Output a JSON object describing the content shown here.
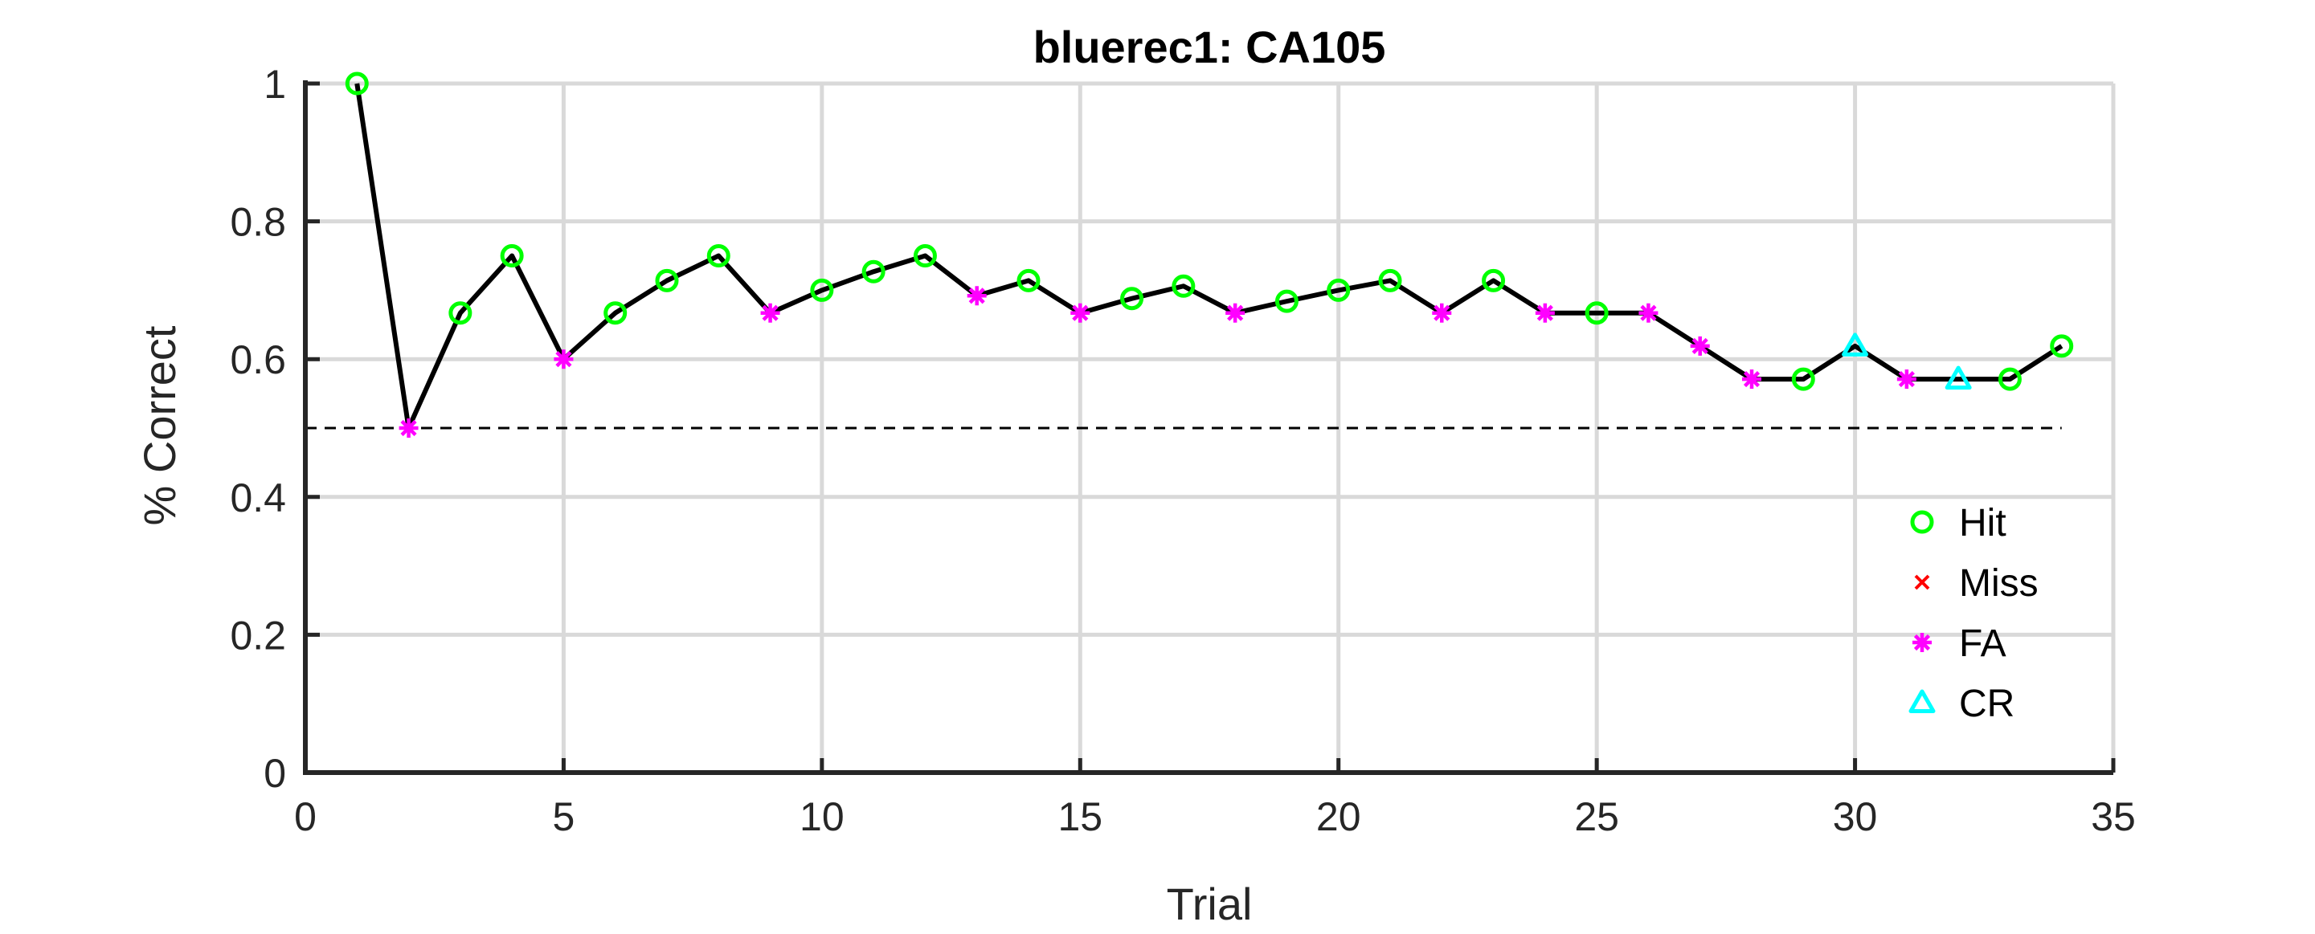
{
  "chart_data": {
    "type": "line",
    "title": "bluerec1: CA105",
    "xlabel": "Trial",
    "ylabel": "% Correct",
    "xlim": [
      0,
      35
    ],
    "ylim": [
      0,
      1
    ],
    "xticks": [
      0,
      5,
      10,
      15,
      20,
      25,
      30,
      35
    ],
    "yticks": [
      0,
      0.2,
      0.4,
      0.6,
      0.8,
      1
    ],
    "yticklabels": [
      "0",
      "0.2",
      "0.4",
      "0.6",
      "0.8",
      "1"
    ],
    "grid": true,
    "reference_line": {
      "y": 0.5,
      "x_range": [
        0,
        34
      ],
      "style": "dashed"
    },
    "line_color": "#000000",
    "series": [
      {
        "name": "% Correct",
        "x": [
          1,
          2,
          3,
          4,
          5,
          6,
          7,
          8,
          9,
          10,
          11,
          12,
          13,
          14,
          15,
          16,
          17,
          18,
          19,
          20,
          21,
          22,
          23,
          24,
          25,
          26,
          27,
          28,
          29,
          30,
          31,
          32,
          33,
          34
        ],
        "y": [
          1,
          0.5,
          0.667,
          0.75,
          0.6,
          0.667,
          0.714,
          0.75,
          0.667,
          0.7,
          0.727,
          0.75,
          0.692,
          0.714,
          0.667,
          0.688,
          0.706,
          0.667,
          0.684,
          0.7,
          0.714,
          0.667,
          0.714,
          0.667,
          0.667,
          0.667,
          0.619,
          0.571,
          0.571,
          0.619,
          0.571,
          0.571,
          0.571,
          0.619
        ],
        "outcome": [
          "Hit",
          "FA",
          "Hit",
          "Hit",
          "FA",
          "Hit",
          "Hit",
          "Hit",
          "FA",
          "Hit",
          "Hit",
          "Hit",
          "FA",
          "Hit",
          "FA",
          "Hit",
          "Hit",
          "FA",
          "Hit",
          "Hit",
          "Hit",
          "FA",
          "Hit",
          "FA",
          "Hit",
          "FA",
          "FA",
          "FA",
          "Hit",
          "CR",
          "FA",
          "CR",
          "Hit",
          "Hit"
        ]
      }
    ],
    "legend": {
      "placement": "lower-right",
      "entries": [
        {
          "label": "Hit",
          "marker": "circle",
          "color": "#00ff00"
        },
        {
          "label": "Miss",
          "marker": "x",
          "color": "#ff0000"
        },
        {
          "label": "FA",
          "marker": "asterisk",
          "color": "#ff00ff"
        },
        {
          "label": "CR",
          "marker": "triangle",
          "color": "#00ffff"
        }
      ]
    }
  }
}
